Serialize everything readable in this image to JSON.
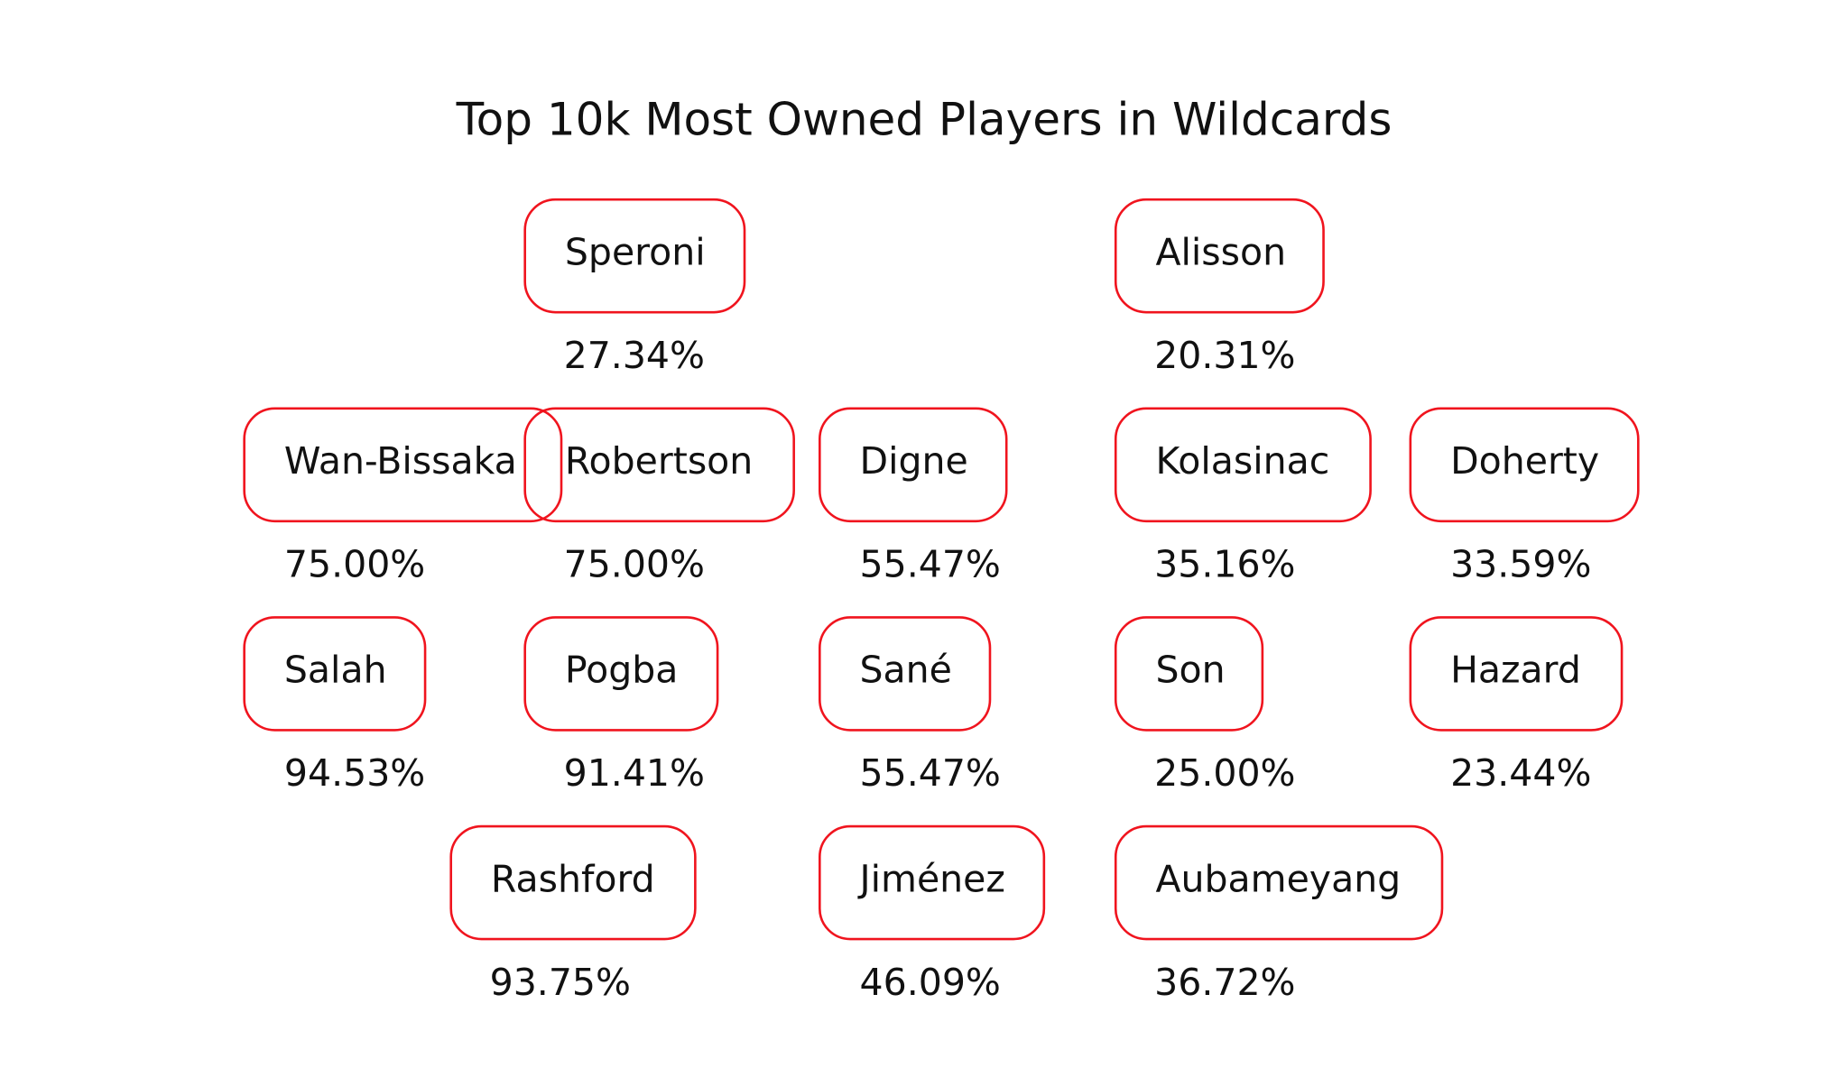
{
  "title": "Top 10k Most Owned Players in Wildcards",
  "players": [
    {
      "name": "Speroni",
      "ownership": "27.34%"
    },
    {
      "name": "Alisson",
      "ownership": "20.31%"
    },
    {
      "name": "Wan-Bissaka",
      "ownership": "75.00%"
    },
    {
      "name": "Robertson",
      "ownership": "75.00%"
    },
    {
      "name": "Digne",
      "ownership": "55.47%"
    },
    {
      "name": "Kolasinac",
      "ownership": "35.16%"
    },
    {
      "name": "Doherty",
      "ownership": "33.59%"
    },
    {
      "name": "Salah",
      "ownership": "94.53%"
    },
    {
      "name": "Pogba",
      "ownership": "91.41%"
    },
    {
      "name": "Sané",
      "ownership": "55.47%"
    },
    {
      "name": "Son",
      "ownership": "25.00%"
    },
    {
      "name": "Hazard",
      "ownership": "23.44%"
    },
    {
      "name": "Rashford",
      "ownership": "93.75%"
    },
    {
      "name": "Jiménez",
      "ownership": "46.09%"
    },
    {
      "name": "Aubameyang",
      "ownership": "36.72%"
    }
  ]
}
